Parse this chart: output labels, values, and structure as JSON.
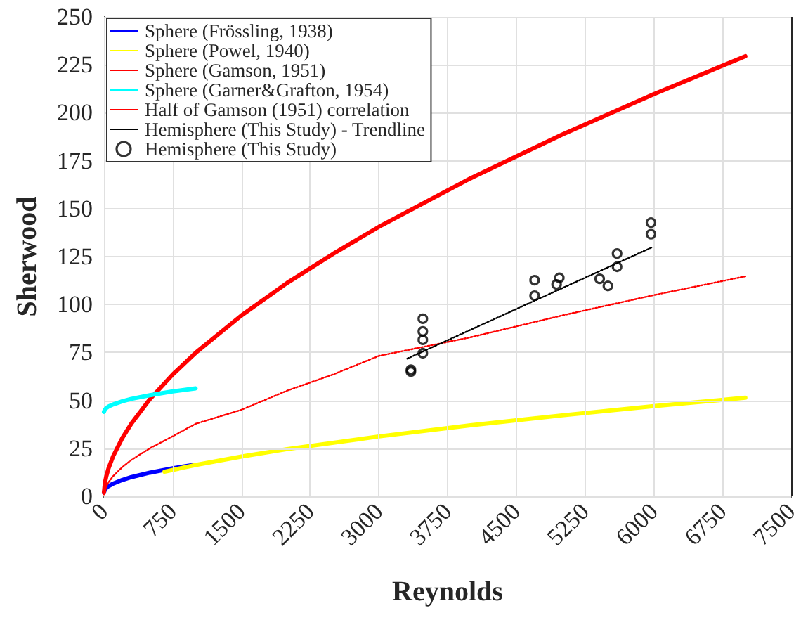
{
  "chart_data": {
    "type": "line",
    "xlabel": "Reynolds",
    "ylabel": "Sherwood",
    "xlim": [
      0,
      7500
    ],
    "xticks": [
      0,
      750,
      1500,
      2250,
      3000,
      3750,
      4500,
      5250,
      6000,
      6750,
      7500
    ],
    "ylim": [
      0,
      250
    ],
    "yticks": [
      0,
      25,
      50,
      75,
      100,
      125,
      150,
      175,
      200,
      225,
      250
    ],
    "grid": true,
    "legend": "top left",
    "marker": "none",
    "line_style": "solid",
    "series": [
      {
        "name": "Sphere (Frössling, 1938)",
        "color": "#0000ff",
        "x": [
          0,
          10,
          25,
          50,
          100,
          200,
          300,
          500,
          750,
          1000
        ],
        "values": [
          2,
          3.5,
          4.3,
          5.3,
          6.6,
          8.5,
          10.0,
          12.3,
          14.6,
          16.5
        ]
      },
      {
        "name": "Sphere (Powel, 1940)",
        "color": "#ffff00",
        "x": [
          660,
          1000,
          1500,
          2000,
          3000,
          4000,
          5000,
          6000,
          7000
        ],
        "values": [
          12.8,
          16.3,
          20.7,
          24.6,
          31.2,
          37.0,
          42.2,
          47.0,
          51.4
        ]
      },
      {
        "name": "Sphere (Gamson, 1951)",
        "color": "#ff0000",
        "x": [
          0,
          10,
          25,
          50,
          100,
          200,
          300,
          500,
          750,
          1000,
          1500,
          2000,
          2500,
          3000,
          4000,
          5000,
          6000,
          7000
        ],
        "values": [
          2,
          6.9,
          10.4,
          14.6,
          20.9,
          30.4,
          38.0,
          50.6,
          63.5,
          74.8,
          94.3,
          111.3,
          126.4,
          140.5,
          165.8,
          188.6,
          209.7,
          229.5
        ]
      },
      {
        "name": "Sphere (Garner&Grafton, 1954)",
        "color": "#00ffff",
        "x": [
          0,
          10,
          25,
          50,
          100,
          200,
          300,
          500,
          750,
          1000
        ],
        "values": [
          44,
          45.2,
          46.0,
          46.8,
          47.9,
          49.5,
          50.8,
          52.7,
          54.7,
          56.3
        ]
      },
      {
        "name": "Half of Gamson (1951) correlation",
        "color": "#ff0000",
        "line_style": "dotted",
        "x": [
          0,
          10,
          25,
          50,
          100,
          200,
          300,
          500,
          750,
          1000,
          1500,
          2000,
          2500,
          3000,
          4000,
          5000,
          6000,
          7000
        ],
        "values": [
          1,
          3.5,
          5.2,
          7.3,
          10.5,
          15.2,
          19.0,
          25.0,
          31.3,
          37.8,
          45.1,
          55.1,
          63.5,
          73.2,
          82.9,
          94.3,
          104.9,
          114.7
        ]
      },
      {
        "name": "Hemisphere (This Study) - Trendline",
        "color": "#000000",
        "line_style": "dotted",
        "x": [
          3310,
          5980
        ],
        "values": [
          71.8,
          129.8
        ]
      },
      {
        "name": "Hemisphere (This Study)",
        "type": "scatter",
        "marker": "circle",
        "color": "#000000",
        "x": [
          3350,
          3350,
          3480,
          3480,
          3480,
          3480,
          4700,
          4700,
          4970,
          4940,
          5410,
          5500,
          5600,
          5600,
          5970,
          5970
        ],
        "values": [
          65,
          66,
          92.6,
          86.0,
          81.6,
          74.6,
          112.7,
          104.6,
          113.9,
          110.5,
          113.4,
          109.7,
          126.6,
          119.7,
          142.7,
          136.7
        ]
      }
    ]
  }
}
